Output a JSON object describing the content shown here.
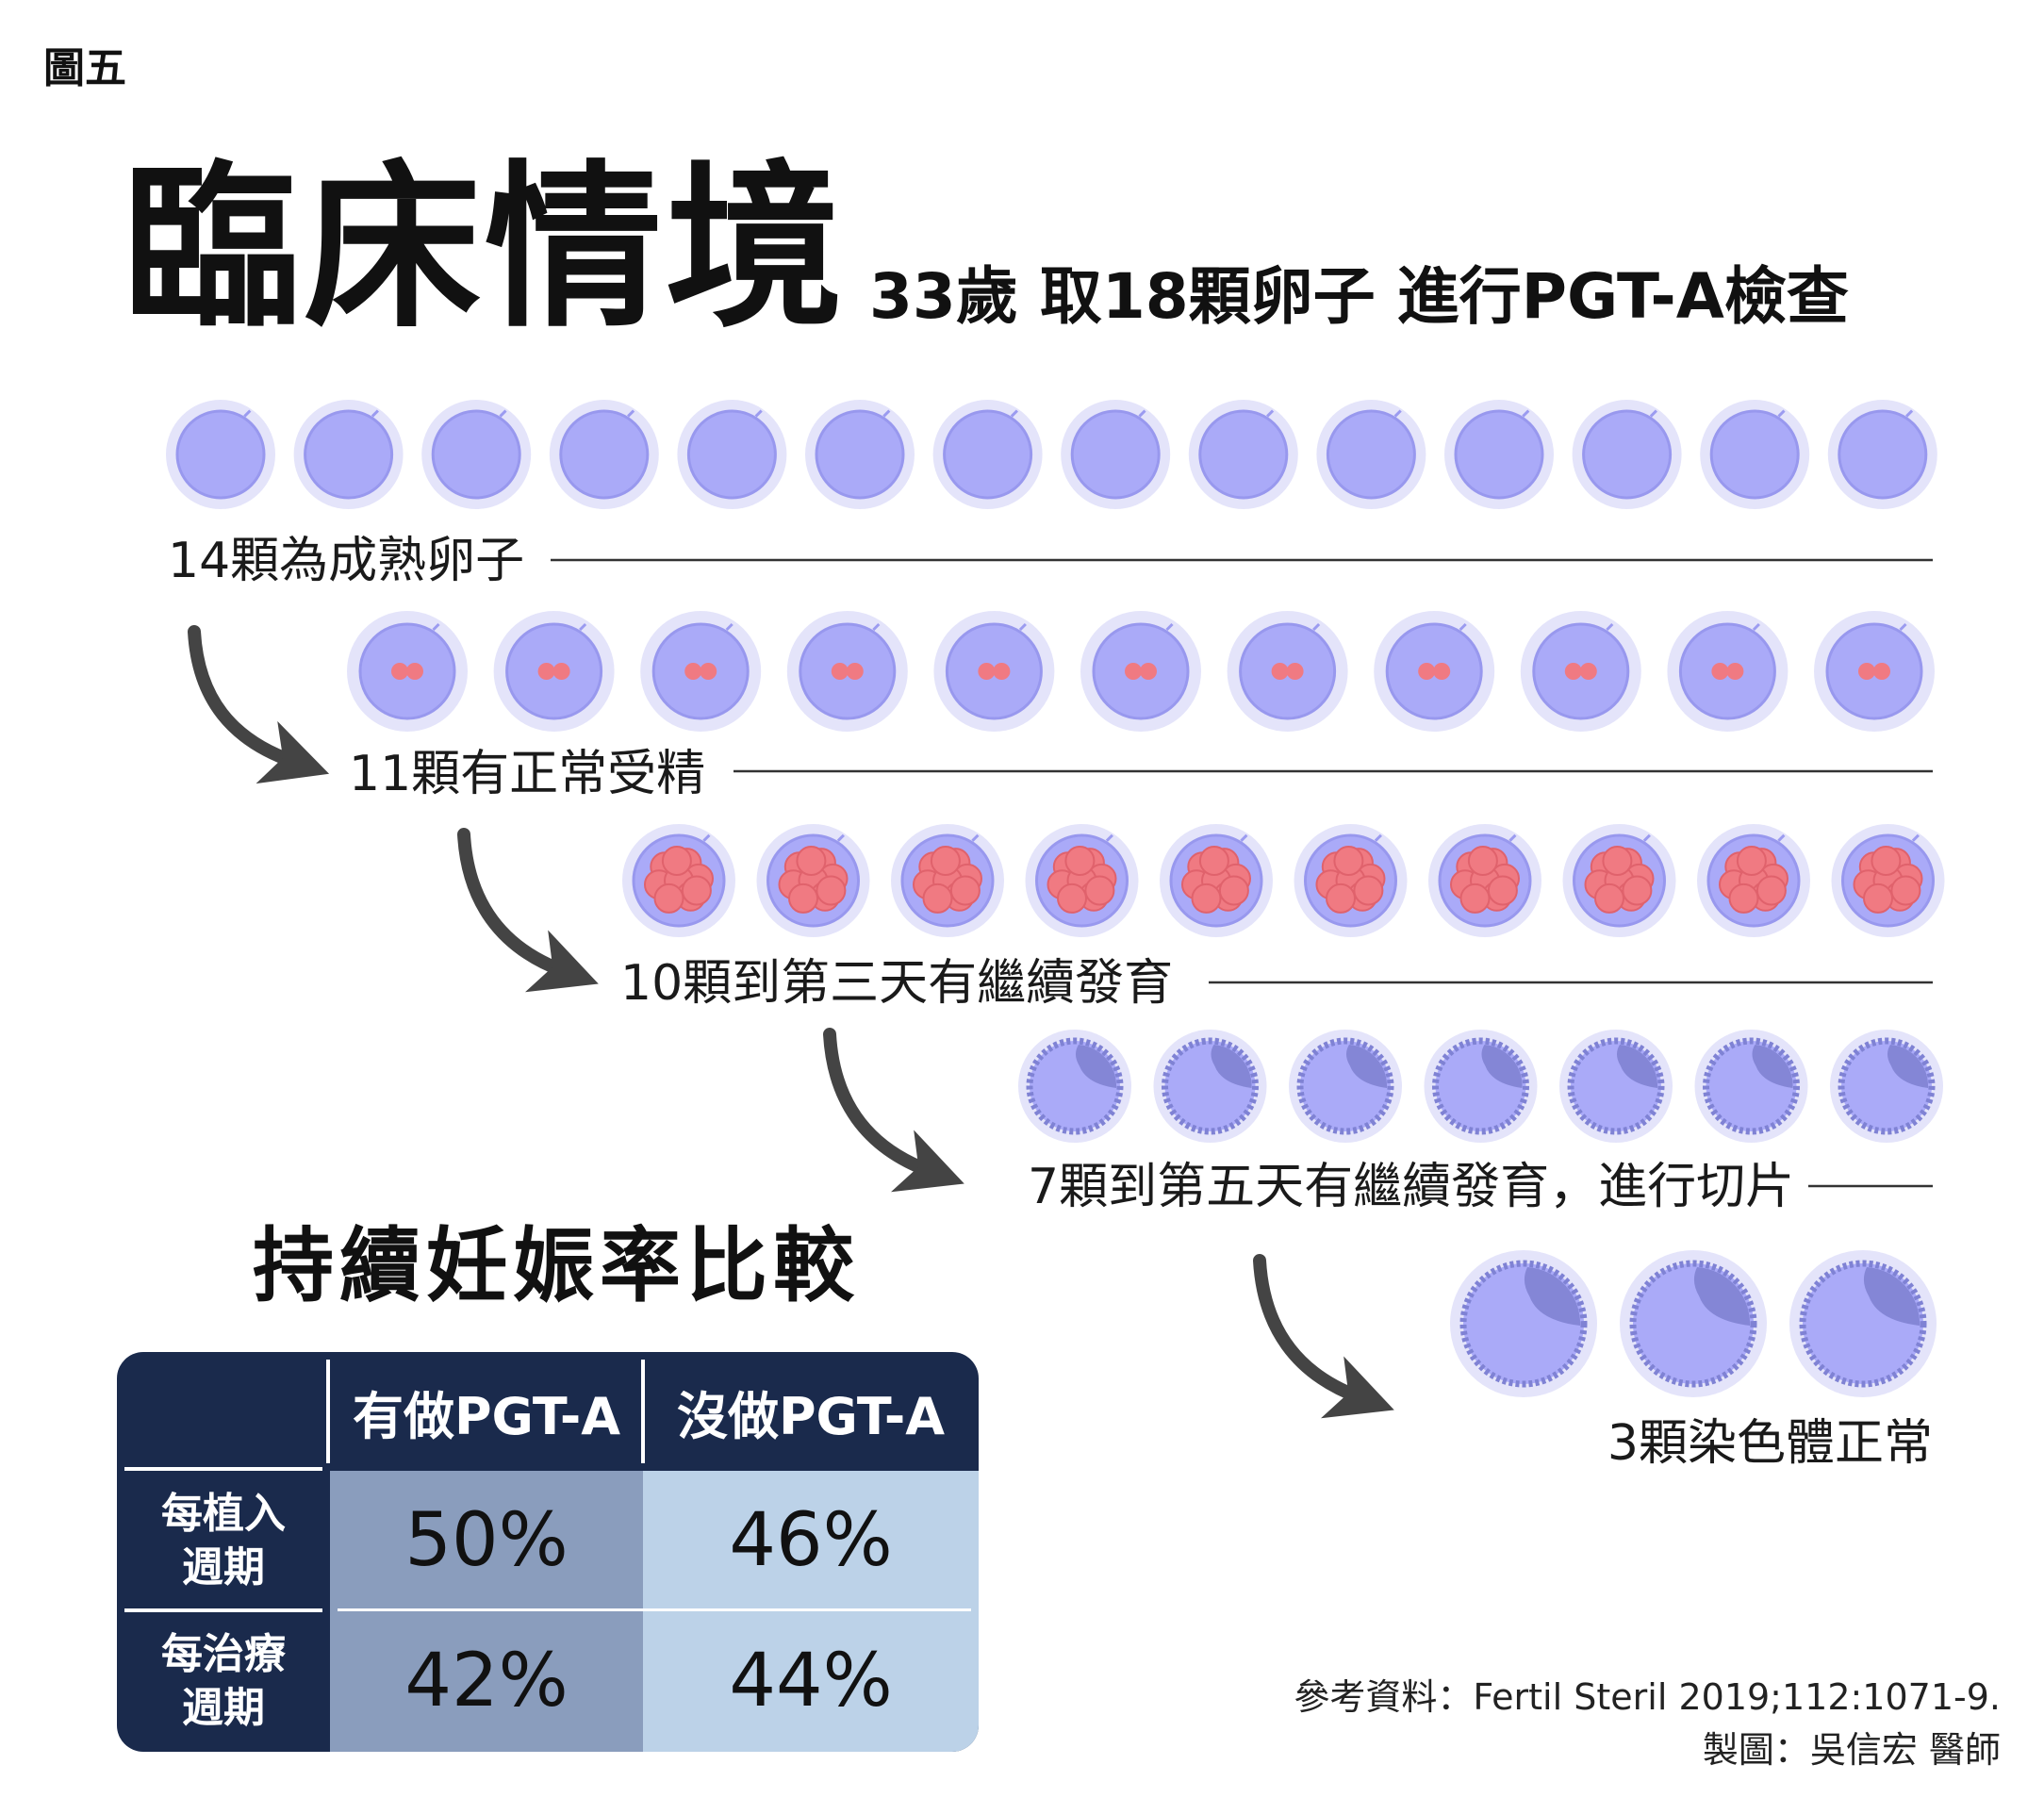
{
  "figure_label": "圖五",
  "title": "臨床情境",
  "subtitle": "33歲  取18顆卵子  進行PGT-A檢查",
  "stages": [
    {
      "label": "14顆為成熟卵子",
      "count": 14,
      "stage_type": "mature-egg-icon"
    },
    {
      "label": "11顆有正常受精",
      "count": 11,
      "stage_type": "fertilized-egg-icon"
    },
    {
      "label": "10顆到第三天有繼續發育",
      "count": 10,
      "stage_type": "day3-embryo-icon"
    },
    {
      "label": "7顆到第五天有繼續發育，進行切片",
      "count": 7,
      "stage_type": "blastocyst-icon"
    },
    {
      "label": "3顆染色體正常",
      "count": 3,
      "stage_type": "euploid-blastocyst-icon"
    }
  ],
  "comparison": {
    "title": "持續妊娠率比較",
    "col_headers": [
      "有做PGT-A",
      "沒做PGT-A"
    ],
    "rows": [
      {
        "label_line1": "每植入",
        "label_line2": "週期",
        "values": [
          "50%",
          "46%"
        ]
      },
      {
        "label_line1": "每治療",
        "label_line2": "週期",
        "values": [
          "42%",
          "44%"
        ]
      }
    ]
  },
  "reference": "參考資料：Fertil Steril 2019;112:1071-9.",
  "credit": "製圖：吳信宏 醫師",
  "colors": {
    "egg_fill": "#aaaaf8",
    "egg_halo": "#e4e4fa",
    "nucleus": "#f07a82",
    "arrow": "#444444",
    "table_dark": "#1a2a4c",
    "table_col1": "#8a9dbd",
    "table_col2": "#bcd2e8"
  }
}
